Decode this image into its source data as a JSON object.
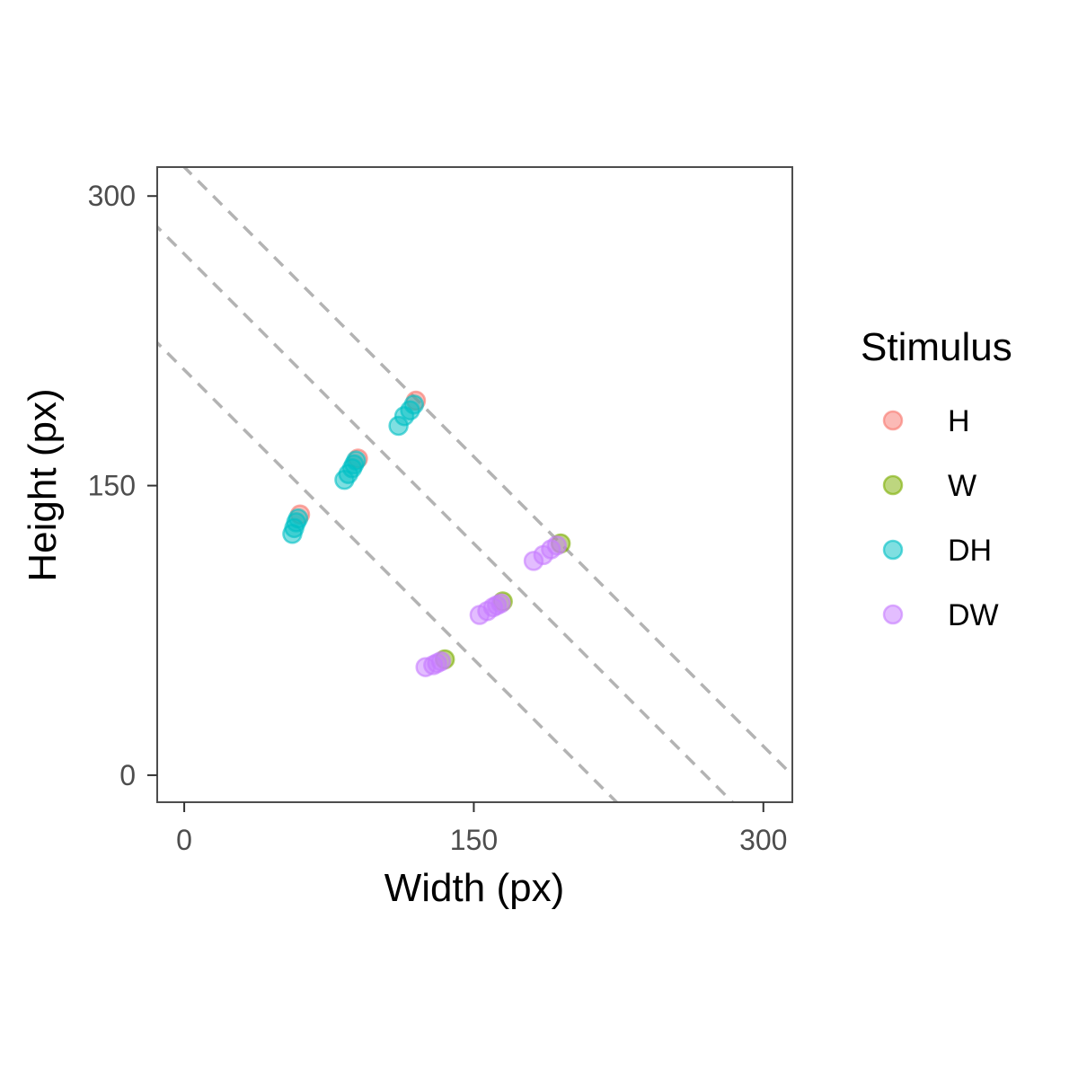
{
  "chart_data": {
    "type": "scatter",
    "xlabel": "Width (px)",
    "ylabel": "Height (px)",
    "xlim": [
      -14,
      315
    ],
    "ylim": [
      -14,
      315
    ],
    "x_ticks": [
      0,
      150,
      300
    ],
    "y_ticks": [
      0,
      150,
      300
    ],
    "x_tick_labels": [
      "0",
      "150",
      "300"
    ],
    "y_tick_labels": [
      "0",
      "150",
      "300"
    ],
    "grid": false,
    "legend": {
      "title": "Stimulus",
      "position": "right",
      "entries": [
        "H",
        "W",
        "DH",
        "DW"
      ]
    },
    "reference_lines": [
      {
        "style": "dashed",
        "color": "#b3b3b3",
        "x_plus_y": 210
      },
      {
        "style": "dashed",
        "color": "#b3b3b3",
        "x_plus_y": 270
      },
      {
        "style": "dashed",
        "color": "#b3b3b3",
        "x_plus_y": 315
      }
    ],
    "series": [
      {
        "name": "H",
        "color": "#F8766D",
        "points": [
          [
            60,
            135
          ],
          [
            90,
            164
          ],
          [
            120,
            194
          ]
        ]
      },
      {
        "name": "W",
        "color": "#7CAE00",
        "points": [
          [
            135,
            60
          ],
          [
            165,
            90
          ],
          [
            195,
            120
          ]
        ]
      },
      {
        "name": "DH",
        "color": "#00BFC4",
        "points": [
          [
            56,
            125
          ],
          [
            57,
            128
          ],
          [
            58,
            131
          ],
          [
            59,
            133
          ],
          [
            83,
            153
          ],
          [
            85,
            156
          ],
          [
            87,
            159
          ],
          [
            88,
            161
          ],
          [
            89,
            163
          ],
          [
            111,
            181
          ],
          [
            114,
            186
          ],
          [
            117,
            189
          ],
          [
            119,
            192
          ]
        ]
      },
      {
        "name": "DW",
        "color": "#C77CFF",
        "points": [
          [
            125,
            56
          ],
          [
            129,
            57
          ],
          [
            131,
            58
          ],
          [
            133,
            59
          ],
          [
            153,
            83
          ],
          [
            157,
            85
          ],
          [
            160,
            87
          ],
          [
            162,
            88
          ],
          [
            164,
            89
          ],
          [
            181,
            111
          ],
          [
            186,
            114
          ],
          [
            190,
            117
          ],
          [
            193,
            119
          ]
        ]
      }
    ]
  }
}
